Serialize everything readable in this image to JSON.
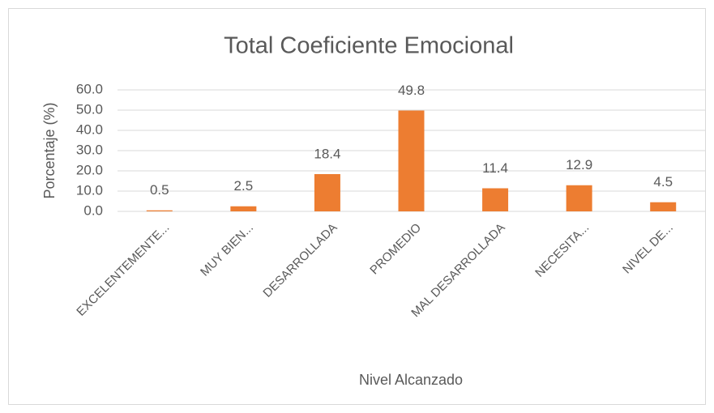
{
  "chart_data": {
    "type": "bar",
    "title": "Total Coeficiente Emocional",
    "y_label": "Porcentaje (%)",
    "x_label": "Nivel Alcanzado",
    "categories": [
      "EXCELENTEMENTE...",
      "MUY BIEN...",
      "DESARROLLADA",
      "PROMEDIO",
      "MAL DESARROLLADA",
      "NECESITA...",
      "NIVEL DE..."
    ],
    "values": [
      0.5,
      2.5,
      18.4,
      49.8,
      11.4,
      12.9,
      4.5
    ],
    "color": "#ed7d31",
    "ylim": [
      0,
      60
    ],
    "yticks": [
      {
        "value": 0,
        "label": "0.0"
      },
      {
        "value": 10,
        "label": "10.0"
      },
      {
        "value": 20,
        "label": "20.0"
      },
      {
        "value": 30,
        "label": "30.0"
      },
      {
        "value": 40,
        "label": "40.0"
      },
      {
        "value": 50,
        "label": "50.0"
      },
      {
        "value": 60,
        "label": "60.0"
      }
    ],
    "grid": true
  }
}
